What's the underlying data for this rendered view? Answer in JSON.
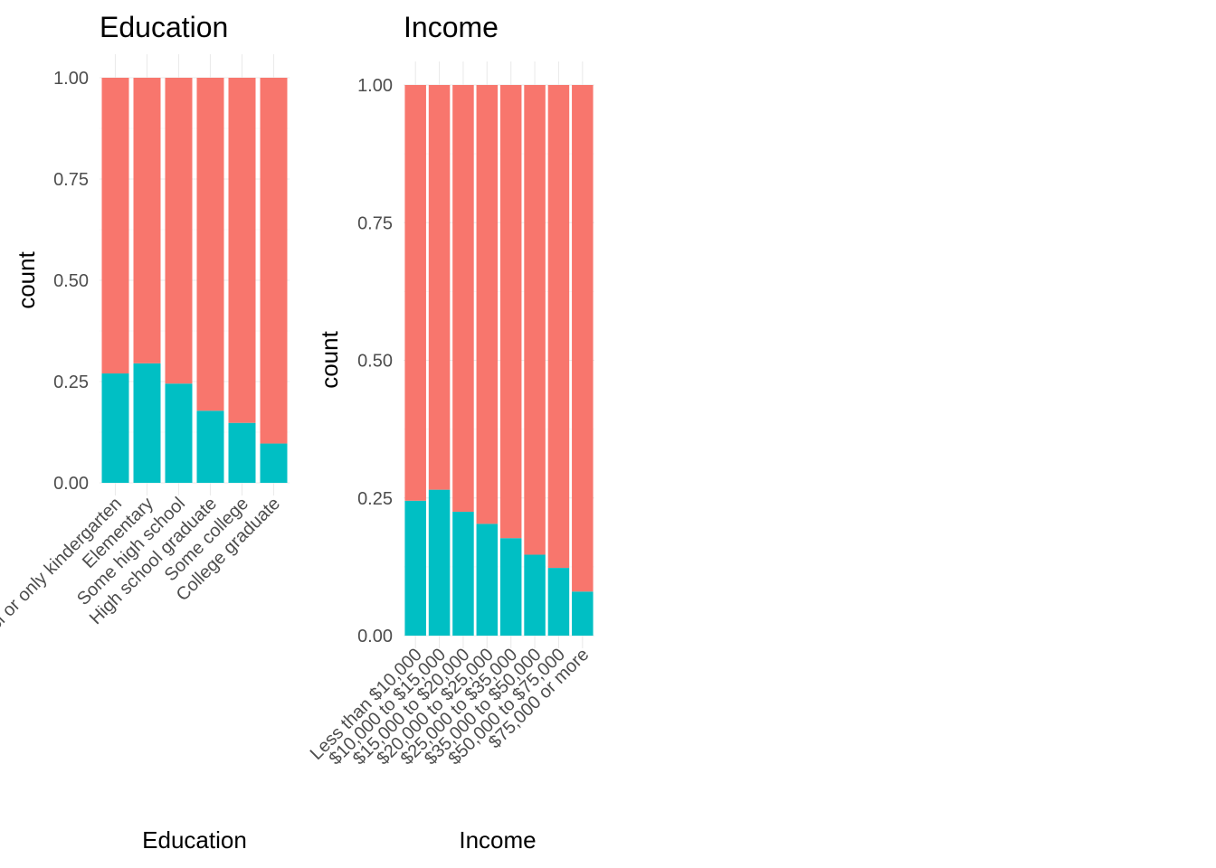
{
  "colors": {
    "low": "#00BFC4",
    "high": "#F8766D",
    "tick": "#4d4d4d",
    "grid": "#ebebeb"
  },
  "chart_data": [
    {
      "type": "bar",
      "stacked": "proportion",
      "title": "Education",
      "xlabel": "Education",
      "ylabel": "count",
      "ylim": [
        0,
        1
      ],
      "yticks": [
        "0.00",
        "0.25",
        "0.50",
        "0.75",
        "1.00"
      ],
      "categories": [
        "Never attended school or only kindergarten",
        "Elementary",
        "Some high school",
        "High school graduate",
        "Some college",
        "College graduate"
      ],
      "series": [
        {
          "color": "#00BFC4",
          "values": [
            0.27,
            0.295,
            0.245,
            0.178,
            0.148,
            0.097
          ]
        },
        {
          "color": "#F8766D",
          "values": [
            0.73,
            0.705,
            0.755,
            0.822,
            0.852,
            0.903
          ]
        }
      ],
      "grid": true,
      "legend": "none"
    },
    {
      "type": "bar",
      "stacked": "proportion",
      "title": "Income",
      "xlabel": "Income",
      "ylabel": "count",
      "ylim": [
        0,
        1
      ],
      "yticks": [
        "0.00",
        "0.25",
        "0.50",
        "0.75",
        "1.00"
      ],
      "categories": [
        "Less than $10,000",
        "$10,000 to $15,000",
        "$15,000 to $20,000",
        "$20,000 to $25,000",
        "$25,000 to $35,000",
        "$35,000 to $50,000",
        "$50,000 to $75,000",
        "$75,000 or more"
      ],
      "series": [
        {
          "color": "#00BFC4",
          "values": [
            0.245,
            0.265,
            0.225,
            0.203,
            0.177,
            0.147,
            0.123,
            0.08
          ]
        },
        {
          "color": "#F8766D",
          "values": [
            0.755,
            0.735,
            0.775,
            0.797,
            0.823,
            0.853,
            0.877,
            0.92
          ]
        }
      ],
      "grid": true,
      "legend": "none"
    }
  ]
}
